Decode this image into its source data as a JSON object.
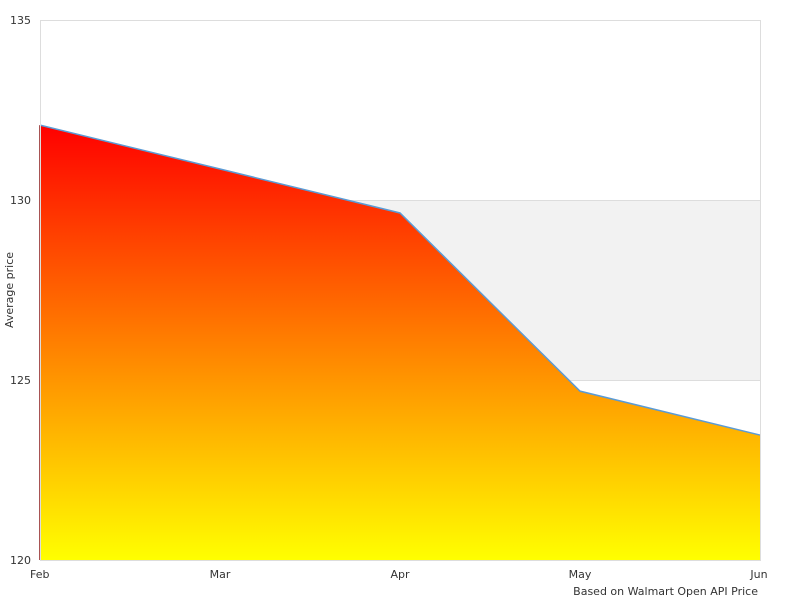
{
  "chart_data": {
    "type": "area",
    "title": "",
    "xlabel": "",
    "ylabel": "Average price",
    "caption": "Based on Walmart Open API Price",
    "categories": [
      "Feb",
      "Mar",
      "Apr",
      "May",
      "Jun"
    ],
    "series": [
      {
        "values": [
          132.08,
          130.86,
          129.64,
          124.69,
          123.47
        ]
      }
    ],
    "ylim": [
      120,
      135
    ],
    "yticks": [
      120,
      125,
      130,
      135
    ],
    "grid": true,
    "banded_background": true,
    "colors": {
      "fill_top": "#ff0000",
      "fill_bottom": "#ffff00",
      "line": "#5b9bd5",
      "band": "#f2f2f2",
      "grid": "#dddddd"
    }
  }
}
